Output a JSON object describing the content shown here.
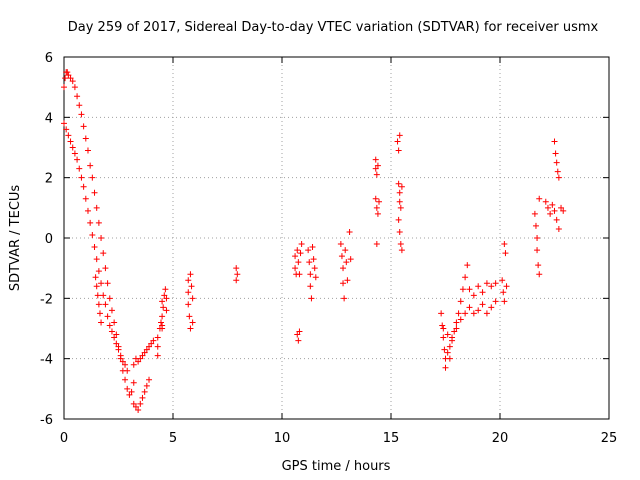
{
  "chart_data": {
    "type": "scatter",
    "title": "Day 259 of 2017, Sidereal Day-to-day VTEC variation (SDTVAR) for receiver usmx",
    "xlabel": "GPS time / hours",
    "ylabel": "SDTVAR / TECUs",
    "xlim": [
      0,
      25
    ],
    "ylim": [
      -6,
      6
    ],
    "xticks": [
      0,
      5,
      10,
      15,
      20,
      25
    ],
    "yticks": [
      -6,
      -4,
      -2,
      0,
      2,
      4,
      6
    ],
    "xtick_labels": [
      "0",
      "5",
      "10",
      "15",
      "20",
      "25"
    ],
    "ytick_labels": [
      "-6",
      "-4",
      "-2",
      "0",
      "2",
      "4",
      "6"
    ],
    "grid": true,
    "marker": "+",
    "color": "#ff0000",
    "series": [
      {
        "name": "SDTVAR",
        "points": [
          [
            0.0,
            5.0
          ],
          [
            0.05,
            5.3
          ],
          [
            0.1,
            5.5
          ],
          [
            0.15,
            5.5
          ],
          [
            0.2,
            5.4
          ],
          [
            0.3,
            5.3
          ],
          [
            0.4,
            5.2
          ],
          [
            0.5,
            5.0
          ],
          [
            0.6,
            4.7
          ],
          [
            0.7,
            4.4
          ],
          [
            0.8,
            4.1
          ],
          [
            0.9,
            3.7
          ],
          [
            1.0,
            3.3
          ],
          [
            1.1,
            2.9
          ],
          [
            1.2,
            2.4
          ],
          [
            1.3,
            2.0
          ],
          [
            1.4,
            1.5
          ],
          [
            1.5,
            1.0
          ],
          [
            1.6,
            0.5
          ],
          [
            1.7,
            0.0
          ],
          [
            1.8,
            -0.5
          ],
          [
            1.9,
            -1.0
          ],
          [
            2.0,
            -1.5
          ],
          [
            2.1,
            -2.0
          ],
          [
            2.2,
            -2.4
          ],
          [
            2.3,
            -2.8
          ],
          [
            2.4,
            -3.2
          ],
          [
            2.5,
            -3.6
          ],
          [
            2.6,
            -4.0
          ],
          [
            2.7,
            -4.4
          ],
          [
            2.8,
            -4.7
          ],
          [
            2.9,
            -5.0
          ],
          [
            3.0,
            -5.2
          ],
          [
            3.1,
            -5.1
          ],
          [
            3.2,
            -4.8
          ],
          [
            0.0,
            3.8
          ],
          [
            0.1,
            3.6
          ],
          [
            0.2,
            3.4
          ],
          [
            0.3,
            3.2
          ],
          [
            0.4,
            3.0
          ],
          [
            0.5,
            2.8
          ],
          [
            0.6,
            2.6
          ],
          [
            0.7,
            2.3
          ],
          [
            0.8,
            2.0
          ],
          [
            0.9,
            1.7
          ],
          [
            1.0,
            1.3
          ],
          [
            1.1,
            0.9
          ],
          [
            1.2,
            0.5
          ],
          [
            1.3,
            0.1
          ],
          [
            1.4,
            -0.3
          ],
          [
            1.5,
            -0.7
          ],
          [
            1.6,
            -1.1
          ],
          [
            1.7,
            -1.5
          ],
          [
            1.8,
            -1.9
          ],
          [
            1.9,
            -2.2
          ],
          [
            2.0,
            -2.6
          ],
          [
            2.1,
            -2.9
          ],
          [
            2.2,
            -3.1
          ],
          [
            2.3,
            -3.3
          ],
          [
            2.4,
            -3.5
          ],
          [
            2.5,
            -3.7
          ],
          [
            2.6,
            -3.9
          ],
          [
            2.7,
            -4.1
          ],
          [
            2.8,
            -4.2
          ],
          [
            2.9,
            -4.4
          ],
          [
            1.45,
            -1.3
          ],
          [
            1.5,
            -1.6
          ],
          [
            1.55,
            -1.9
          ],
          [
            1.6,
            -2.2
          ],
          [
            1.65,
            -2.5
          ],
          [
            1.7,
            -2.8
          ],
          [
            3.2,
            -4.2
          ],
          [
            3.3,
            -4.0
          ],
          [
            3.4,
            -4.1
          ],
          [
            3.5,
            -4.0
          ],
          [
            3.6,
            -3.9
          ],
          [
            3.7,
            -3.8
          ],
          [
            3.8,
            -3.7
          ],
          [
            3.9,
            -3.6
          ],
          [
            4.0,
            -3.5
          ],
          [
            4.1,
            -3.4
          ],
          [
            3.2,
            -5.5
          ],
          [
            3.3,
            -5.6
          ],
          [
            3.4,
            -5.7
          ],
          [
            3.5,
            -5.5
          ],
          [
            3.6,
            -5.3
          ],
          [
            3.7,
            -5.1
          ],
          [
            3.8,
            -4.9
          ],
          [
            3.9,
            -4.7
          ],
          [
            4.3,
            -3.9
          ],
          [
            4.3,
            -3.6
          ],
          [
            4.3,
            -3.3
          ],
          [
            4.4,
            -3.0
          ],
          [
            4.45,
            -2.8
          ],
          [
            4.5,
            -2.6
          ],
          [
            4.5,
            -3.0
          ],
          [
            4.5,
            -2.1
          ],
          [
            4.55,
            -2.3
          ],
          [
            4.6,
            -1.9
          ],
          [
            4.65,
            -1.7
          ],
          [
            4.7,
            -2.0
          ],
          [
            4.7,
            -2.4
          ],
          [
            4.5,
            -2.9
          ],
          [
            5.7,
            -1.4
          ],
          [
            5.7,
            -1.8
          ],
          [
            5.7,
            -2.2
          ],
          [
            5.75,
            -2.6
          ],
          [
            5.8,
            -3.0
          ],
          [
            5.8,
            -1.2
          ],
          [
            5.85,
            -1.6
          ],
          [
            5.9,
            -2.0
          ],
          [
            5.9,
            -2.8
          ],
          [
            7.9,
            -1.0
          ],
          [
            7.9,
            -1.4
          ],
          [
            7.95,
            -1.2
          ],
          [
            10.6,
            -0.6
          ],
          [
            10.6,
            -1.0
          ],
          [
            10.65,
            -1.2
          ],
          [
            10.7,
            -0.4
          ],
          [
            10.75,
            -0.8
          ],
          [
            10.8,
            -1.2
          ],
          [
            10.85,
            -0.5
          ],
          [
            10.9,
            -0.2
          ],
          [
            10.7,
            -3.2
          ],
          [
            10.75,
            -3.4
          ],
          [
            10.8,
            -3.1
          ],
          [
            11.2,
            -0.4
          ],
          [
            11.25,
            -0.8
          ],
          [
            11.3,
            -1.2
          ],
          [
            11.3,
            -1.6
          ],
          [
            11.35,
            -2.0
          ],
          [
            11.4,
            -0.3
          ],
          [
            11.45,
            -0.7
          ],
          [
            11.5,
            -1.0
          ],
          [
            11.55,
            -1.3
          ],
          [
            12.7,
            -0.2
          ],
          [
            12.75,
            -0.6
          ],
          [
            12.8,
            -1.0
          ],
          [
            12.8,
            -1.5
          ],
          [
            12.85,
            -2.0
          ],
          [
            12.9,
            -0.4
          ],
          [
            12.95,
            -0.8
          ],
          [
            13.0,
            -1.4
          ],
          [
            13.1,
            0.2
          ],
          [
            13.15,
            -0.7
          ],
          [
            14.3,
            2.6
          ],
          [
            14.3,
            2.3
          ],
          [
            14.35,
            2.1
          ],
          [
            14.4,
            2.4
          ],
          [
            14.3,
            1.3
          ],
          [
            14.35,
            1.0
          ],
          [
            14.4,
            0.8
          ],
          [
            14.45,
            1.2
          ],
          [
            14.35,
            -0.2
          ],
          [
            15.3,
            3.2
          ],
          [
            15.35,
            2.9
          ],
          [
            15.4,
            3.4
          ],
          [
            15.35,
            1.8
          ],
          [
            15.4,
            1.5
          ],
          [
            15.4,
            1.2
          ],
          [
            15.45,
            1.0
          ],
          [
            15.5,
            1.7
          ],
          [
            15.35,
            0.6
          ],
          [
            15.4,
            0.2
          ],
          [
            15.45,
            -0.2
          ],
          [
            15.5,
            -0.4
          ],
          [
            17.3,
            -2.5
          ],
          [
            17.35,
            -2.9
          ],
          [
            17.4,
            -3.3
          ],
          [
            17.45,
            -3.7
          ],
          [
            17.5,
            -4.0
          ],
          [
            17.6,
            -3.8
          ],
          [
            17.7,
            -3.6
          ],
          [
            17.8,
            -3.3
          ],
          [
            17.9,
            -3.1
          ],
          [
            18.0,
            -2.8
          ],
          [
            18.1,
            -2.5
          ],
          [
            18.2,
            -2.1
          ],
          [
            18.3,
            -1.7
          ],
          [
            18.4,
            -1.3
          ],
          [
            18.5,
            -0.9
          ],
          [
            17.4,
            -3.0
          ],
          [
            17.6,
            -3.2
          ],
          [
            17.8,
            -3.4
          ],
          [
            18.0,
            -3.0
          ],
          [
            18.2,
            -2.7
          ],
          [
            18.4,
            -2.5
          ],
          [
            18.6,
            -2.3
          ],
          [
            18.8,
            -2.5
          ],
          [
            19.0,
            -2.4
          ],
          [
            19.2,
            -2.2
          ],
          [
            19.4,
            -2.5
          ],
          [
            19.6,
            -2.3
          ],
          [
            19.8,
            -2.1
          ],
          [
            18.6,
            -1.7
          ],
          [
            18.8,
            -1.9
          ],
          [
            19.0,
            -1.6
          ],
          [
            19.2,
            -1.8
          ],
          [
            19.4,
            -1.5
          ],
          [
            19.6,
            -1.6
          ],
          [
            19.8,
            -1.5
          ],
          [
            17.5,
            -4.3
          ],
          [
            17.7,
            -4.0
          ],
          [
            20.2,
            -0.2
          ],
          [
            20.25,
            -0.5
          ],
          [
            20.1,
            -1.4
          ],
          [
            20.15,
            -1.8
          ],
          [
            20.2,
            -2.1
          ],
          [
            20.3,
            -1.6
          ],
          [
            21.6,
            0.8
          ],
          [
            21.65,
            0.4
          ],
          [
            21.7,
            0.0
          ],
          [
            21.7,
            -0.4
          ],
          [
            21.75,
            -0.9
          ],
          [
            21.8,
            -1.2
          ],
          [
            21.8,
            1.3
          ],
          [
            22.1,
            1.2
          ],
          [
            22.2,
            1.0
          ],
          [
            22.3,
            0.8
          ],
          [
            22.4,
            1.1
          ],
          [
            22.5,
            0.9
          ],
          [
            22.6,
            0.6
          ],
          [
            22.7,
            0.3
          ],
          [
            22.8,
            1.0
          ],
          [
            22.9,
            0.9
          ],
          [
            22.5,
            3.2
          ],
          [
            22.55,
            2.8
          ],
          [
            22.6,
            2.5
          ],
          [
            22.65,
            2.2
          ],
          [
            22.7,
            2.0
          ]
        ]
      }
    ]
  }
}
